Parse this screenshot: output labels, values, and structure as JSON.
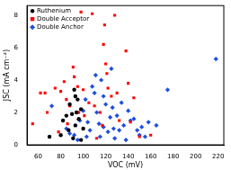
{
  "chart_data": {
    "type": "scatter",
    "x_label": "VOC (mV)",
    "y_label": "JSC (mA cm⁻²)",
    "xlim": [
      50,
      225
    ],
    "xticks": [
      60,
      80,
      100,
      120,
      140,
      160,
      180,
      200,
      220
    ],
    "ylim": [
      0,
      8.6
    ],
    "yticks": [
      0,
      2,
      4,
      6,
      8
    ],
    "grid": false,
    "legend": "top-left",
    "series": [
      {
        "name": "Ruthenium",
        "color": "#000000",
        "marker": "circle",
        "x": [
          92,
          93,
          95,
          88,
          98,
          90,
          85,
          96,
          93,
          100,
          87,
          80,
          91,
          98,
          70,
          82,
          94
        ],
        "values": [
          3.4,
          3.0,
          2.8,
          2.5,
          2.2,
          1.9,
          1.8,
          1.6,
          1.2,
          1.0,
          0.9,
          0.6,
          0.4,
          0.3,
          0.5,
          1.5,
          2.0
        ]
      },
      {
        "name": "Double Acceptor",
        "color": "#ff0000",
        "marker": "square",
        "x": [
          55,
          62,
          66,
          68,
          75,
          80,
          83,
          85,
          88,
          91,
          92,
          95,
          98,
          100,
          101,
          108,
          110,
          115,
          117,
          118,
          119,
          120,
          121,
          122,
          128,
          125,
          130,
          132,
          138,
          142,
          145,
          150,
          96,
          86,
          78,
          112,
          140,
          160,
          105
        ],
        "values": [
          1.3,
          3.2,
          3.2,
          2.0,
          3.5,
          3.3,
          3.9,
          2.8,
          2.4,
          4.8,
          4.2,
          3.6,
          8.2,
          3.4,
          1.8,
          8.1,
          2.4,
          2.0,
          1.2,
          6.2,
          7.4,
          5.0,
          4.4,
          3.5,
          8.0,
          3.0,
          3.2,
          1.5,
          5.8,
          1.4,
          2.9,
          0.5,
          2.0,
          1.3,
          0.8,
          0.4,
          3.8,
          0.6,
          2.6
        ]
      },
      {
        "name": "Double Anchor",
        "color": "#1f4fe0",
        "marker": "diamond",
        "x": [
          72,
          85,
          88,
          92,
          95,
          97,
          100,
          102,
          104,
          106,
          108,
          110,
          111,
          112,
          114,
          115,
          116,
          118,
          120,
          122,
          124,
          125,
          126,
          128,
          130,
          132,
          134,
          136,
          138,
          140,
          142,
          145,
          148,
          150,
          152,
          155,
          158,
          165,
          175,
          218,
          118,
          103,
          127
        ],
        "values": [
          2.4,
          1.0,
          0.7,
          0.6,
          0.3,
          1.5,
          2.1,
          2.8,
          1.4,
          0.9,
          3.6,
          3.2,
          4.3,
          2.0,
          1.3,
          0.5,
          4.0,
          1.1,
          2.5,
          0.8,
          1.7,
          4.7,
          2.3,
          0.4,
          1.8,
          0.9,
          2.6,
          1.2,
          0.3,
          2.1,
          1.5,
          1.6,
          0.9,
          0.6,
          1.1,
          0.5,
          1.4,
          1.2,
          3.4,
          5.3,
          3.0,
          0.5,
          1.0
        ]
      }
    ]
  }
}
